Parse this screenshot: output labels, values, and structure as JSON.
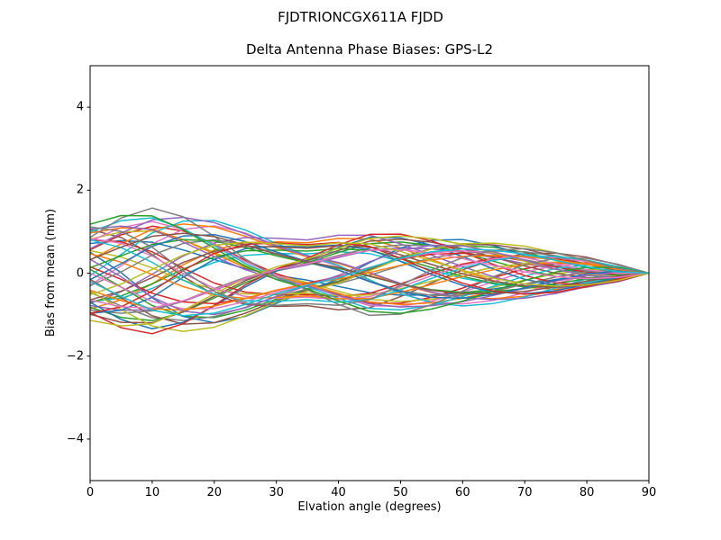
{
  "figure": {
    "suptitle": "FJDTRIONCGX611A FJDD",
    "background_color": "#ffffff",
    "axis_color": "#000000",
    "text_color": "#000000"
  },
  "chart_data": {
    "type": "line",
    "suptitle": "FJDTRIONCGX611A FJDD",
    "title": "Delta Antenna Phase Biases: GPS-L2",
    "xlabel": "Elvation angle (degrees)",
    "ylabel": "Bias from mean (mm)",
    "xlim": [
      0,
      90
    ],
    "ylim": [
      -5,
      5
    ],
    "xticks": [
      {
        "v": 0,
        "label": "0"
      },
      {
        "v": 10,
        "label": "10"
      },
      {
        "v": 20,
        "label": "20"
      },
      {
        "v": 30,
        "label": "30"
      },
      {
        "v": 40,
        "label": "40"
      },
      {
        "v": 50,
        "label": "50"
      },
      {
        "v": 60,
        "label": "60"
      },
      {
        "v": 70,
        "label": "70"
      },
      {
        "v": 80,
        "label": "80"
      },
      {
        "v": 90,
        "label": "90"
      }
    ],
    "yticks": [
      {
        "v": -4,
        "label": "−4"
      },
      {
        "v": -2,
        "label": "−2"
      },
      {
        "v": 0,
        "label": "0"
      },
      {
        "v": 2,
        "label": "2"
      },
      {
        "v": 4,
        "label": "4"
      }
    ],
    "grid": false,
    "legend": "none",
    "n_series": 50,
    "line_width": 1.5,
    "x": [
      0,
      5,
      10,
      15,
      20,
      25,
      30,
      35,
      40,
      45,
      50,
      55,
      60,
      65,
      70,
      75,
      80,
      85,
      90
    ],
    "envelope_amplitude": [
      1.3,
      1.48,
      1.6,
      1.52,
      1.36,
      1.14,
      0.93,
      0.82,
      0.95,
      1.06,
      1.03,
      0.96,
      0.88,
      0.78,
      0.68,
      0.55,
      0.4,
      0.22,
      0.0
    ],
    "envelope_note": "All series converge to exactly 0 mm at 90 deg; spread is about +1.4/-1.3 at 0 deg, +1.5/-1.7 near 10 deg, pinches to about +/-0.8 near 32 deg, re-expands to about +/-1.05 near 45 deg, then tapers to 0.",
    "series_model": "y(x_j) = amp * cos((phase_deg - freq * x_j) * PI/180) * envelope_amplitude[j]",
    "palette": [
      "#1f77b4",
      "#ff7f0e",
      "#2ca02c",
      "#d62728",
      "#9467bd",
      "#8c564b",
      "#e377c2",
      "#7f7f7f",
      "#bcbd22",
      "#17becf"
    ],
    "series": [
      {
        "color": "#1f77b4",
        "phase_deg": 0.0,
        "freq": 3.2,
        "amp": 0.55
      },
      {
        "color": "#ff7f0e",
        "phase_deg": 137.5,
        "freq": 3.73,
        "amp": 0.9
      },
      {
        "color": "#2ca02c",
        "phase_deg": 275.0,
        "freq": 4.26,
        "amp": 0.8
      },
      {
        "color": "#d62728",
        "phase_deg": 52.5,
        "freq": 4.79,
        "amp": 0.71
      },
      {
        "color": "#9467bd",
        "phase_deg": 190.0,
        "freq": 3.52,
        "amp": 0.61
      },
      {
        "color": "#8c564b",
        "phase_deg": 327.5,
        "freq": 4.05,
        "amp": 0.96
      },
      {
        "color": "#e377c2",
        "phase_deg": 105.0,
        "freq": 4.58,
        "amp": 0.86
      },
      {
        "color": "#7f7f7f",
        "phase_deg": 242.5,
        "freq": 3.31,
        "amp": 0.77
      },
      {
        "color": "#bcbd22",
        "phase_deg": 20.0,
        "freq": 3.84,
        "amp": 0.67
      },
      {
        "color": "#17becf",
        "phase_deg": 157.5,
        "freq": 4.36,
        "amp": 0.57
      },
      {
        "color": "#1f77b4",
        "phase_deg": 295.0,
        "freq": 4.89,
        "amp": 0.92
      },
      {
        "color": "#ff7f0e",
        "phase_deg": 72.5,
        "freq": 3.62,
        "amp": 0.82
      },
      {
        "color": "#2ca02c",
        "phase_deg": 210.0,
        "freq": 4.15,
        "amp": 0.73
      },
      {
        "color": "#d62728",
        "phase_deg": 347.5,
        "freq": 4.68,
        "amp": 0.63
      },
      {
        "color": "#9467bd",
        "phase_deg": 125.0,
        "freq": 3.41,
        "amp": 0.98
      },
      {
        "color": "#8c564b",
        "phase_deg": 262.5,
        "freq": 3.94,
        "amp": 0.88
      },
      {
        "color": "#e377c2",
        "phase_deg": 40.0,
        "freq": 4.47,
        "amp": 0.78
      },
      {
        "color": "#7f7f7f",
        "phase_deg": 177.5,
        "freq": 3.2,
        "amp": 0.69
      },
      {
        "color": "#bcbd22",
        "phase_deg": 315.0,
        "freq": 3.73,
        "amp": 0.59
      },
      {
        "color": "#17becf",
        "phase_deg": 92.5,
        "freq": 4.26,
        "amp": 0.94
      },
      {
        "color": "#1f77b4",
        "phase_deg": 230.0,
        "freq": 4.79,
        "amp": 0.84
      },
      {
        "color": "#ff7f0e",
        "phase_deg": 7.5,
        "freq": 3.52,
        "amp": 0.75
      },
      {
        "color": "#2ca02c",
        "phase_deg": 145.0,
        "freq": 4.05,
        "amp": 0.65
      },
      {
        "color": "#d62728",
        "phase_deg": 282.5,
        "freq": 4.58,
        "amp": 0.55
      },
      {
        "color": "#9467bd",
        "phase_deg": 60.0,
        "freq": 3.31,
        "amp": 0.9
      },
      {
        "color": "#8c564b",
        "phase_deg": 197.5,
        "freq": 3.84,
        "amp": 0.8
      },
      {
        "color": "#e377c2",
        "phase_deg": 335.0,
        "freq": 4.36,
        "amp": 0.71
      },
      {
        "color": "#7f7f7f",
        "phase_deg": 112.5,
        "freq": 4.89,
        "amp": 0.61
      },
      {
        "color": "#bcbd22",
        "phase_deg": 250.0,
        "freq": 3.62,
        "amp": 0.96
      },
      {
        "color": "#17becf",
        "phase_deg": 27.5,
        "freq": 4.15,
        "amp": 0.86
      },
      {
        "color": "#1f77b4",
        "phase_deg": 165.0,
        "freq": 4.68,
        "amp": 0.77
      },
      {
        "color": "#ff7f0e",
        "phase_deg": 302.5,
        "freq": 3.41,
        "amp": 0.67
      },
      {
        "color": "#2ca02c",
        "phase_deg": 80.0,
        "freq": 3.94,
        "amp": 0.57
      },
      {
        "color": "#d62728",
        "phase_deg": 217.5,
        "freq": 4.47,
        "amp": 0.92
      },
      {
        "color": "#9467bd",
        "phase_deg": 355.0,
        "freq": 3.2,
        "amp": 0.82
      },
      {
        "color": "#8c564b",
        "phase_deg": 132.5,
        "freq": 3.73,
        "amp": 0.73
      },
      {
        "color": "#e377c2",
        "phase_deg": 270.0,
        "freq": 4.26,
        "amp": 0.63
      },
      {
        "color": "#7f7f7f",
        "phase_deg": 47.5,
        "freq": 4.79,
        "amp": 0.98
      },
      {
        "color": "#bcbd22",
        "phase_deg": 185.0,
        "freq": 3.52,
        "amp": 0.88
      },
      {
        "color": "#17becf",
        "phase_deg": 322.5,
        "freq": 4.05,
        "amp": 0.78
      },
      {
        "color": "#1f77b4",
        "phase_deg": 100.0,
        "freq": 4.58,
        "amp": 0.69
      },
      {
        "color": "#ff7f0e",
        "phase_deg": 237.5,
        "freq": 3.31,
        "amp": 0.59
      },
      {
        "color": "#2ca02c",
        "phase_deg": 15.0,
        "freq": 3.84,
        "amp": 0.94
      },
      {
        "color": "#d62728",
        "phase_deg": 152.5,
        "freq": 4.36,
        "amp": 0.84
      },
      {
        "color": "#9467bd",
        "phase_deg": 290.0,
        "freq": 4.89,
        "amp": 0.75
      },
      {
        "color": "#8c564b",
        "phase_deg": 67.5,
        "freq": 3.62,
        "amp": 0.65
      },
      {
        "color": "#e377c2",
        "phase_deg": 205.0,
        "freq": 4.15,
        "amp": 0.55
      },
      {
        "color": "#7f7f7f",
        "phase_deg": 342.5,
        "freq": 4.68,
        "amp": 0.9
      },
      {
        "color": "#bcbd22",
        "phase_deg": 120.0,
        "freq": 3.41,
        "amp": 0.8
      },
      {
        "color": "#17becf",
        "phase_deg": 257.5,
        "freq": 3.94,
        "amp": 0.71
      }
    ]
  }
}
